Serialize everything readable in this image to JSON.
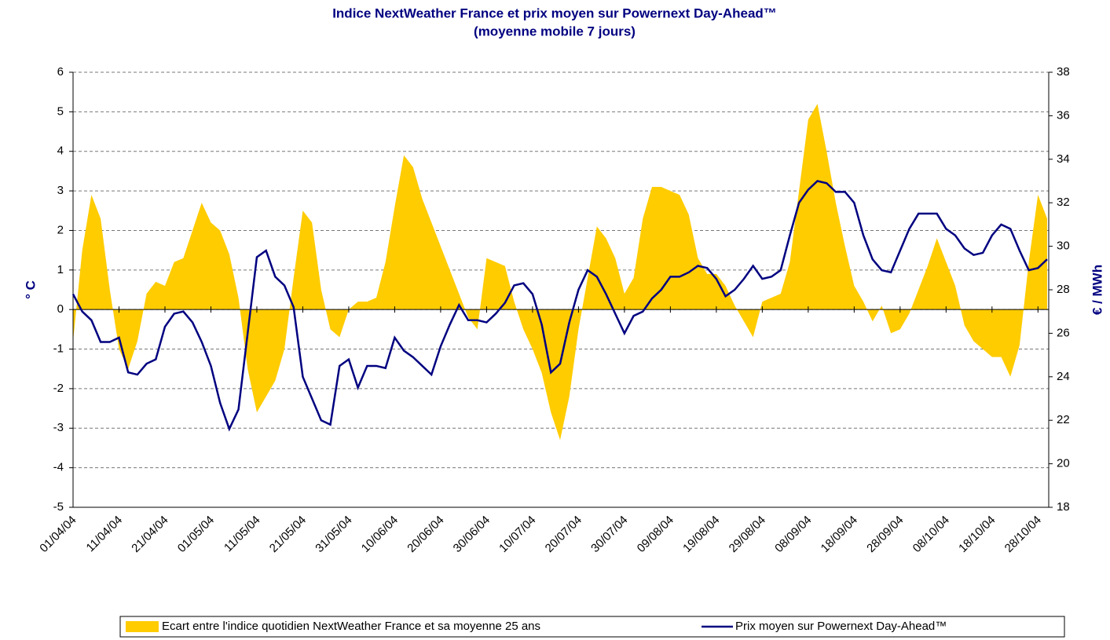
{
  "chart_data": {
    "type": "area-line",
    "title": "Indice NextWeather France et prix moyen sur Powernext Day-Ahead™",
    "subtitle": "(moyenne mobile 7 jours)",
    "y_label": "° C",
    "y2_label": "€ / MWh",
    "categories": [
      "01/04/04",
      null,
      null,
      null,
      null,
      "11/04/04",
      null,
      null,
      null,
      null,
      "21/04/04",
      null,
      null,
      null,
      null,
      "01/05/04",
      null,
      null,
      null,
      null,
      "11/05/04",
      null,
      null,
      null,
      null,
      "21/05/04",
      null,
      null,
      null,
      null,
      "31/05/04",
      null,
      null,
      null,
      null,
      "10/06/04",
      null,
      null,
      null,
      null,
      "20/06/04",
      null,
      null,
      null,
      null,
      "30/06/04",
      null,
      null,
      null,
      null,
      "10/07/04",
      null,
      null,
      null,
      null,
      "20/07/04",
      null,
      null,
      null,
      null,
      "30/07/04",
      null,
      null,
      null,
      null,
      "09/08/04",
      null,
      null,
      null,
      null,
      "19/08/04",
      null,
      null,
      null,
      null,
      "29/08/04",
      null,
      null,
      null,
      null,
      "08/09/04",
      null,
      null,
      null,
      null,
      "18/09/04",
      null,
      null,
      null,
      null,
      "28/09/04",
      null,
      null,
      null,
      null,
      "08/10/04",
      null,
      null,
      null,
      null,
      "18/10/04",
      null,
      null,
      null,
      null,
      "28/10/04",
      null
    ],
    "series": [
      {
        "name": "Ecart entre l'indice quotidien NextWeather France et sa moyenne 25 ans",
        "kind": "area",
        "color": "#ffcc00",
        "values": [
          -0.8,
          1.5,
          2.9,
          2.3,
          0.5,
          -1.0,
          -1.5,
          -0.8,
          0.4,
          0.7,
          0.6,
          1.2,
          1.3,
          2.0,
          2.7,
          2.2,
          2.0,
          1.4,
          0.3,
          -1.5,
          -2.6,
          -2.2,
          -1.8,
          -1.0,
          0.8,
          2.5,
          2.2,
          0.5,
          -0.5,
          -0.7,
          0.0,
          0.2,
          0.2,
          0.3,
          1.2,
          2.6,
          3.9,
          3.6,
          2.8,
          2.2,
          1.6,
          1.0,
          0.4,
          -0.2,
          -0.5,
          1.3,
          1.2,
          1.1,
          0.2,
          -0.5,
          -1.0,
          -1.6,
          -2.6,
          -3.3,
          -2.2,
          -0.5,
          0.8,
          2.1,
          1.8,
          1.3,
          0.4,
          0.8,
          2.3,
          3.1,
          3.1,
          3.0,
          2.9,
          2.4,
          1.3,
          0.9,
          0.9,
          0.6,
          0.1,
          -0.3,
          -0.7,
          0.2,
          0.3,
          0.4,
          1.2,
          3.0,
          4.8,
          5.2,
          4.0,
          2.7,
          1.6,
          0.6,
          0.2,
          -0.3,
          0.1,
          -0.6,
          -0.5,
          -0.1,
          0.5,
          1.1,
          1.8,
          1.2,
          0.6,
          -0.4,
          -0.8,
          -1.0,
          -1.2,
          -1.2,
          -1.7,
          -0.9,
          1.2,
          2.9,
          2.3
        ]
      },
      {
        "name": "Prix moyen sur Powernext Day-Ahead™",
        "kind": "line",
        "color": "#000080",
        "axis": "y2",
        "values": [
          27.8,
          27.0,
          26.6,
          25.6,
          25.6,
          25.8,
          24.2,
          24.1,
          24.6,
          24.8,
          26.3,
          26.9,
          27.0,
          26.5,
          25.6,
          24.5,
          22.8,
          21.6,
          22.5,
          26.0,
          29.5,
          29.8,
          28.6,
          28.2,
          27.2,
          24.0,
          23.0,
          22.0,
          21.8,
          24.5,
          24.8,
          23.5,
          24.5,
          24.5,
          24.4,
          25.8,
          25.2,
          24.9,
          24.5,
          24.1,
          25.4,
          26.4,
          27.3,
          26.6,
          26.6,
          26.5,
          26.9,
          27.4,
          28.2,
          28.3,
          27.8,
          26.4,
          24.2,
          24.6,
          26.5,
          28.0,
          28.9,
          28.6,
          27.8,
          26.9,
          26.0,
          26.8,
          27.0,
          27.6,
          28.0,
          28.6,
          28.6,
          28.8,
          29.1,
          29.0,
          28.5,
          27.7,
          28.0,
          28.5,
          29.1,
          28.5,
          28.6,
          28.9,
          30.5,
          32.0,
          32.6,
          33.0,
          32.9,
          32.5,
          32.5,
          32.0,
          30.5,
          29.4,
          28.9,
          28.8,
          29.8,
          30.8,
          31.5,
          31.5,
          31.5,
          30.8,
          30.5,
          29.9,
          29.6,
          29.7,
          30.5,
          31.0,
          30.8,
          29.8,
          28.9,
          29.0,
          29.4
        ]
      }
    ],
    "ylim": [
      -5,
      6
    ],
    "yticks": [
      -5,
      -4,
      -3,
      -2,
      -1,
      0,
      1,
      2,
      3,
      4,
      5,
      6
    ],
    "y2lim": [
      18,
      38
    ],
    "y2ticks": [
      18,
      20,
      22,
      24,
      26,
      28,
      30,
      32,
      34,
      36,
      38
    ],
    "grid": true
  }
}
